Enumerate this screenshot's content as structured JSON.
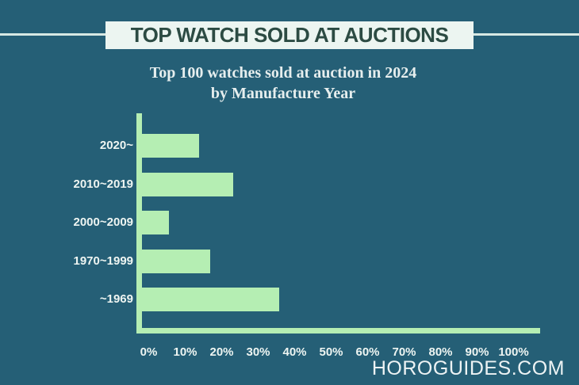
{
  "page": {
    "background_color": "#255f76"
  },
  "header": {
    "title": "TOP WATCH SOLD AT AUCTIONS",
    "box_color": "#ecf5f1",
    "text_color": "#2c4b43",
    "line_color": "#d8e9e4"
  },
  "chart_data": {
    "type": "bar",
    "orientation": "horizontal",
    "title_line1": "Top 100 watches sold at auction in 2024",
    "title_line2": "by Manufacture Year",
    "categories": [
      "2020~",
      "2010~2019",
      "2000~2009",
      "1970~1999",
      "~1969"
    ],
    "values": [
      15,
      24,
      7,
      18,
      36
    ],
    "unit": "%",
    "xlim": [
      0,
      100
    ],
    "x_tick_labels": [
      "0%",
      "10%",
      "20%",
      "30%",
      "40%",
      "50%",
      "60%",
      "70%",
      "80%",
      "90%",
      "100%"
    ],
    "grid": false,
    "legend": false,
    "bar_color": "#b5eeb3",
    "axis_color": "#b5eeb3",
    "category_label_color": "#eef5f2",
    "tick_label_color": "#eef5f2",
    "title_color": "#e6eeee"
  },
  "footer": {
    "brand": "HOROGUIDES.COM"
  }
}
